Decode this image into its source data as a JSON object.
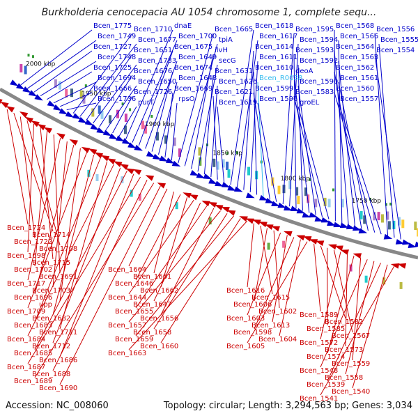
{
  "title": "Burkholderia cenocepacia AU 1054 chromosome 1, complete sequ...",
  "footer": {
    "accession": "Accession: NC_008060",
    "summary": "Topology: circular; Length: 3,294,563 bp; Genes: 3,034"
  },
  "colors": {
    "forward": "#0000cc",
    "reverse": "#cc0000",
    "rna": "#33bbee",
    "backbone": "#888888",
    "marker": "#339933"
  },
  "ruler": [
    "2000 kbp",
    "1950 kbp",
    "1900 kbp",
    "1850 kbp",
    "1800 kbp",
    "1750 kbp"
  ],
  "top_labels": [
    "Bcen_1775",
    "Bcen_1749",
    "Bcen_1727",
    "Bcen_1748",
    "Bcen_1725",
    "Bcen_1694",
    "Bcen_1666",
    "Bcen_1736",
    "Bcen_1710",
    "Bcen_1677",
    "Bcen_1651",
    "Bcen_1733",
    "Bcen_1676",
    "Bcen_1650",
    "Bcen_1726",
    "purT",
    "dnaE",
    "Bcen_1700",
    "Bcen_1675",
    "Bcen_1649",
    "Bcen_1674",
    "Bcen_1648",
    "Bcen_1669",
    "rpsO",
    "Bcen_1665",
    "tpiA",
    "ilvH",
    "secG",
    "Bcen_1631",
    "Bcen_1626",
    "Bcen_1621",
    "Bcen_1619",
    "Bcen_1618",
    "Bcen_1617",
    "Bcen_1614",
    "Bcen_1611",
    "Bcen_1610",
    "Bcen_R0038",
    "Bcen_1599",
    "Bcen_1596",
    "Bcen_1595",
    "Bcen_1594",
    "Bcen_1593",
    "Bcen_1592",
    "deoA",
    "Bcen_1590",
    "Bcen_1583",
    "groEL",
    "Bcen_1568",
    "Bcen_1566",
    "Bcen_1564",
    "Bcen_1563",
    "Bcen_1562",
    "Bcen_1561",
    "Bcen_1560",
    "Bcen_1557",
    "Bcen_1556",
    "Bcen_1555",
    "Bcen_1554"
  ],
  "bottom_labels": [
    "Bcen_1724",
    "Bcen_1714",
    "Bcen_1722",
    "Bcen_1708",
    "Bcen_1698",
    "Bcen_1715",
    "Bcen_1702",
    "Bcen_1691",
    "Bcen_1717",
    "Bcen_1703",
    "Bcen_1696",
    "upp",
    "Bcen_1709",
    "Bcen_1682",
    "Bcen_1683",
    "Bcen_1711",
    "Bcen_1684",
    "Bcen_1712",
    "Bcen_1685",
    "Bcen_1686",
    "Bcen_1687",
    "Bcen_1688",
    "Bcen_1689",
    "Bcen_1690",
    "Bcen_1664",
    "Bcen_1661",
    "Bcen_1646",
    "Bcen_1662",
    "Bcen_1644",
    "Bcen_1647",
    "Bcen_1655",
    "Bcen_1656",
    "Bcen_1657",
    "Bcen_1658",
    "Bcen_1659",
    "Bcen_1660",
    "Bcen_1663",
    "Bcen_1616",
    "Bcen_1615",
    "Bcen_1606",
    "Bcen_1602",
    "Bcen_1603",
    "Bcen_1613",
    "Bcen_1598",
    "Bcen_1604",
    "Bcen_1605",
    "Bcen_1589",
    "Bcen_1582",
    "Bcen_1585",
    "Bcen_1567",
    "Bcen_1572",
    "Bcen_1573",
    "Bcen_1574",
    "Bcen_1559",
    "Bcen_1548",
    "Bcen_1558",
    "Bcen_1539",
    "Bcen_1540",
    "Bcen_1541"
  ]
}
